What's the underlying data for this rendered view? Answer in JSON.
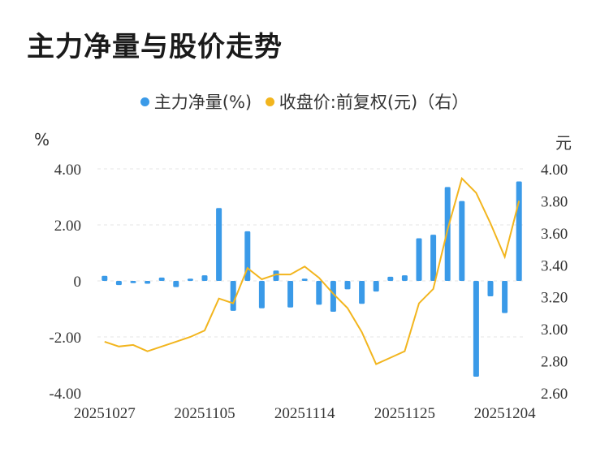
{
  "title": "主力净量与股价走势",
  "chart_data": {
    "type": "bar+line",
    "legend": {
      "placement": "top-center",
      "items": [
        {
          "label": "主力净量(%)",
          "color": "#3a9ae8"
        },
        {
          "label": "收盘价:前复权(元)（右）",
          "color": "#f2b51e"
        }
      ]
    },
    "left_axis": {
      "unit": "%",
      "ticks": [
        "4.00",
        "2.00",
        "0",
        "-2.00",
        "-4.00"
      ],
      "range": [
        -4,
        4
      ]
    },
    "right_axis": {
      "unit": "元",
      "ticks": [
        "4.00",
        "3.80",
        "3.60",
        "3.40",
        "3.20",
        "3.00",
        "2.80",
        "2.60"
      ],
      "range": [
        2.6,
        4.0
      ]
    },
    "x_tick_labels": [
      "20251027",
      "20251105",
      "20251114",
      "20251125",
      "20251204"
    ],
    "x_tick_index": [
      0,
      7,
      14,
      21,
      28
    ],
    "grid": true,
    "series": [
      {
        "name": "主力净量(%)",
        "type": "bar",
        "color": "#3a9ae8",
        "values": [
          0.18,
          -0.15,
          -0.08,
          -0.1,
          0.12,
          -0.22,
          0.08,
          0.2,
          2.6,
          -1.07,
          1.77,
          -0.98,
          0.37,
          -0.95,
          0.08,
          -0.85,
          -1.1,
          -0.3,
          -0.82,
          -0.38,
          0.15,
          0.2,
          1.52,
          1.65,
          3.35,
          2.85,
          -3.42,
          -0.55,
          -1.15,
          3.55
        ]
      },
      {
        "name": "收盘价:前复权(元)（右）",
        "type": "line",
        "color": "#f2b51e",
        "values": [
          2.92,
          2.89,
          2.9,
          2.86,
          2.89,
          2.92,
          2.95,
          2.99,
          3.19,
          3.16,
          3.38,
          3.31,
          3.34,
          3.34,
          3.39,
          3.32,
          3.22,
          3.13,
          2.98,
          2.78,
          2.82,
          2.86,
          3.16,
          3.25,
          3.62,
          3.94,
          3.85,
          3.66,
          3.45,
          3.8
        ]
      }
    ]
  }
}
